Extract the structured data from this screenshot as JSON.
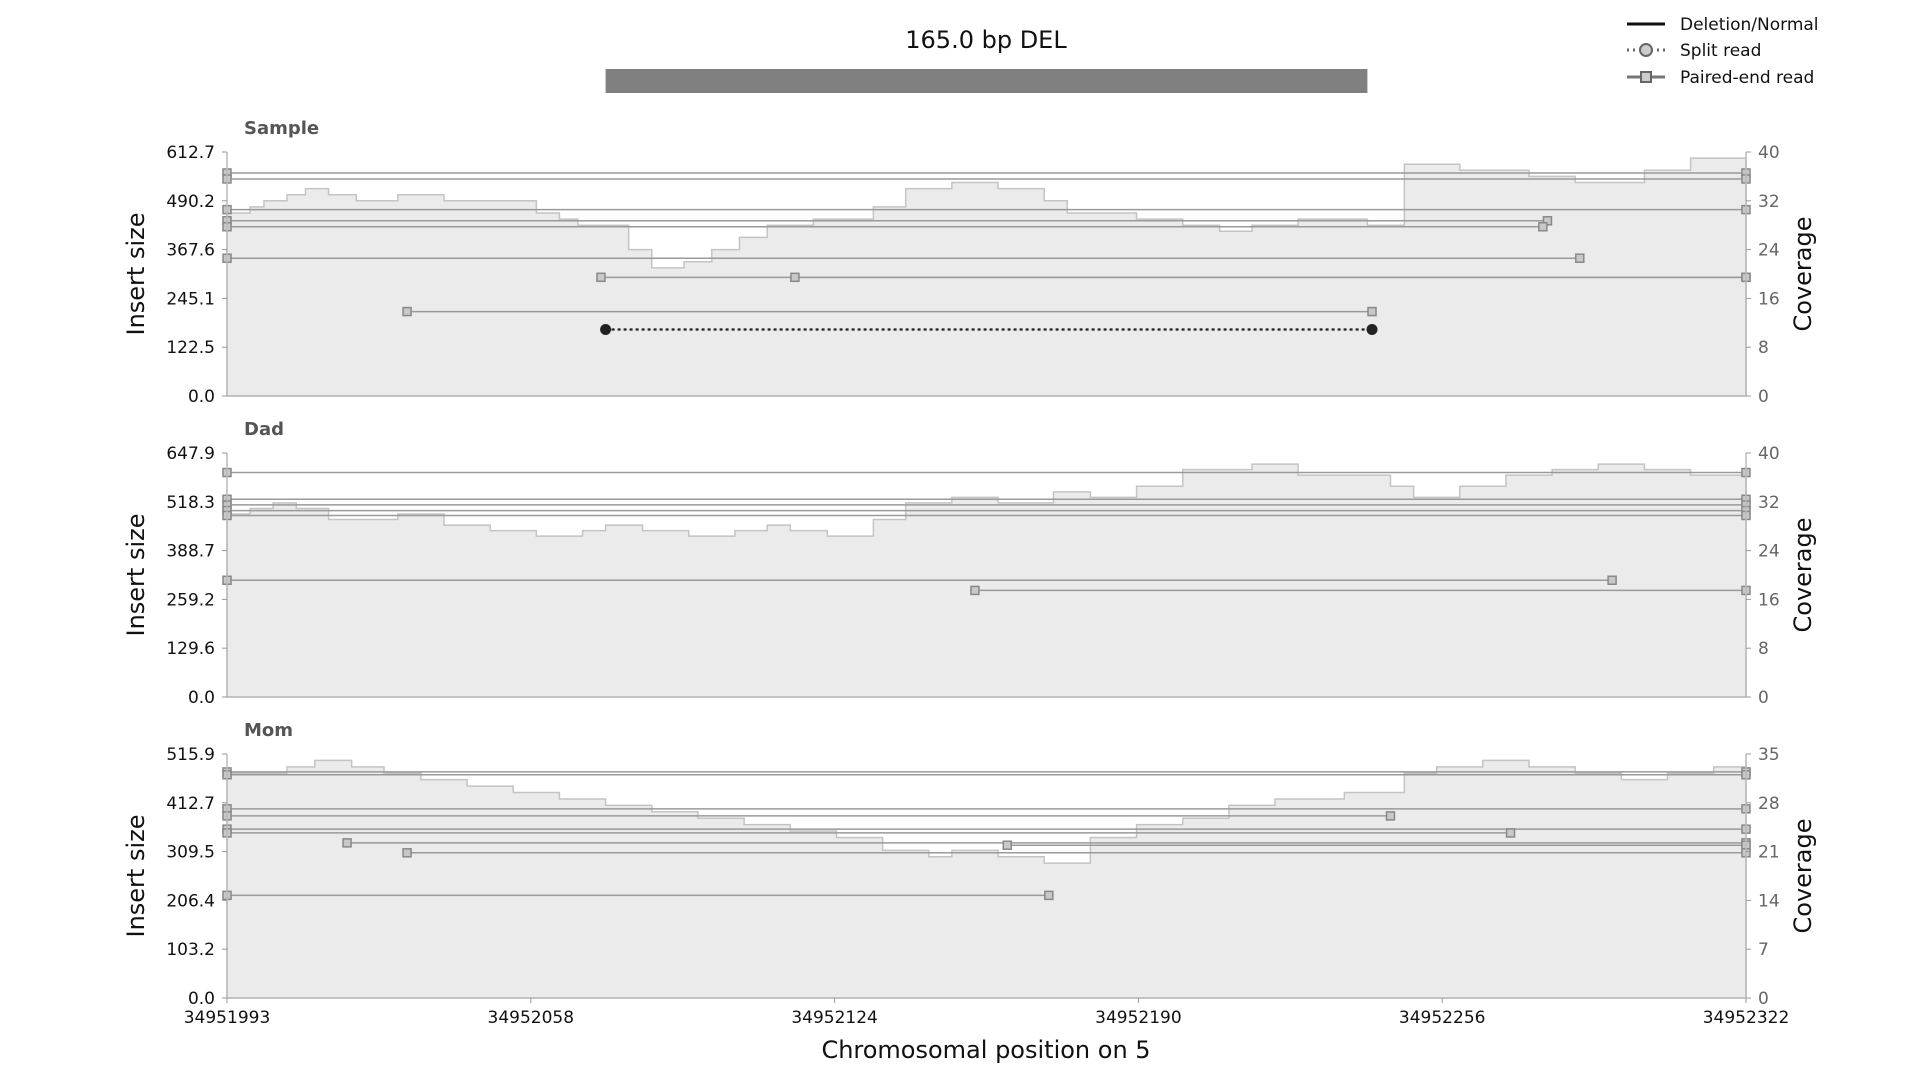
{
  "chart_data": {
    "type": "line",
    "title": "165.0 bp DEL",
    "xlabel": "Chromosomal position on 5",
    "x_ticks": [
      "34951993",
      "34952058",
      "34952124",
      "34952190",
      "34952256",
      "34952322"
    ],
    "xlim": [
      34951993,
      34952322
    ],
    "legend_position": "top-right",
    "legend": [
      {
        "label": "Deletion/Normal",
        "style": "solid"
      },
      {
        "label": "Split read",
        "style": "dotted-circle"
      },
      {
        "label": "Paired-end read",
        "style": "line-square"
      }
    ],
    "sv": {
      "start": 34952075,
      "end": 34952240,
      "type": "DEL",
      "length_bp": 165.0
    },
    "colors": {
      "coverage_fill": "#ebebeb",
      "coverage_edge": "#c4c4c4",
      "read_line": "#9a9a9a",
      "sv_bar": "#808080",
      "split_read": "#222222"
    },
    "panels": [
      {
        "name": "Sample",
        "ylabel": "Insert size",
        "y2label": "Coverage",
        "y_ticks": [
          "0.0",
          "122.5",
          "245.1",
          "367.6",
          "490.2",
          "612.7"
        ],
        "y2_ticks": [
          "0",
          "8",
          "16",
          "24",
          "32",
          "40"
        ],
        "ylim": [
          0,
          612.7
        ],
        "y2lim": [
          0,
          40
        ],
        "coverage": {
          "x": [
            34951993,
            34951998,
            34952001,
            34952006,
            34952010,
            34952015,
            34952021,
            34952030,
            34952040,
            34952050,
            34952060,
            34952065,
            34952069,
            34952075,
            34952080,
            34952085,
            34952092,
            34952098,
            34952104,
            34952110,
            34952120,
            34952133,
            34952140,
            34952150,
            34952160,
            34952170,
            34952175,
            34952180,
            34952190,
            34952200,
            34952208,
            34952215,
            34952225,
            34952240,
            34952248,
            34952260,
            34952275,
            34952285,
            34952300,
            34952310,
            34952322
          ],
          "y": [
            30,
            31,
            32,
            33,
            34,
            33,
            32,
            33,
            32,
            32,
            30,
            29,
            28,
            28,
            24,
            21,
            22,
            24,
            26,
            28,
            29,
            31,
            34,
            35,
            34,
            32,
            30,
            30,
            29,
            28,
            27,
            28,
            29,
            28,
            38,
            37,
            36,
            35,
            37,
            39,
            38
          ]
        },
        "split_reads": [
          {
            "start": 34952075,
            "end": 34952241,
            "insert_size": 167
          }
        ],
        "paired_reads": [
          {
            "start": 34951993,
            "end": 34952322,
            "insert_size": 560
          },
          {
            "start": 34951993,
            "end": 34952322,
            "insert_size": 545
          },
          {
            "start": 34951993,
            "end": 34952322,
            "insert_size": 468
          },
          {
            "start": 34951993,
            "end": 34952279,
            "insert_size": 440
          },
          {
            "start": 34951993,
            "end": 34952278,
            "insert_size": 425
          },
          {
            "start": 34951993,
            "end": 34952286,
            "insert_size": 346
          },
          {
            "start": 34952074,
            "end": 34952322,
            "insert_size": 298
          },
          {
            "start": 34952116,
            "end": 34952322,
            "insert_size": 298
          },
          {
            "start": 34952032,
            "end": 34952241,
            "insert_size": 212
          }
        ]
      },
      {
        "name": "Dad",
        "ylabel": "Insert size",
        "y2label": "Coverage",
        "y_ticks": [
          "0.0",
          "129.6",
          "259.2",
          "388.7",
          "518.3",
          "647.9"
        ],
        "y2_ticks": [
          "0",
          "8",
          "16",
          "24",
          "32",
          "40"
        ],
        "ylim": [
          0,
          647.9
        ],
        "y2lim": [
          0,
          44
        ],
        "coverage": {
          "x": [
            34951993,
            34951998,
            34952003,
            34952008,
            34952015,
            34952030,
            34952040,
            34952050,
            34952060,
            34952070,
            34952075,
            34952083,
            34952093,
            34952103,
            34952110,
            34952115,
            34952123,
            34952133,
            34952140,
            34952150,
            34952160,
            34952172,
            34952180,
            34952190,
            34952200,
            34952215,
            34952225,
            34952245,
            34952250,
            34952260,
            34952270,
            34952280,
            34952290,
            34952300,
            34952310,
            34952322
          ],
          "y": [
            33,
            34,
            35,
            34,
            32,
            33,
            31,
            30,
            29,
            30,
            31,
            30,
            29,
            30,
            31,
            30,
            29,
            32,
            35,
            36,
            35,
            37,
            36,
            38,
            41,
            42,
            40,
            38,
            36,
            38,
            40,
            41,
            42,
            41,
            40,
            40
          ]
        },
        "split_reads": [],
        "paired_reads": [
          {
            "start": 34951993,
            "end": 34952322,
            "insert_size": 596
          },
          {
            "start": 34951993,
            "end": 34952322,
            "insert_size": 525
          },
          {
            "start": 34951993,
            "end": 34952322,
            "insert_size": 510
          },
          {
            "start": 34951993,
            "end": 34952322,
            "insert_size": 495
          },
          {
            "start": 34951993,
            "end": 34952322,
            "insert_size": 482
          },
          {
            "start": 34951993,
            "end": 34952293,
            "insert_size": 310
          },
          {
            "start": 34952155,
            "end": 34952322,
            "insert_size": 283
          }
        ]
      },
      {
        "name": "Mom",
        "ylabel": "Insert size",
        "y2label": "Coverage",
        "y_ticks": [
          "0.0",
          "103.2",
          "206.4",
          "309.5",
          "412.7",
          "515.9"
        ],
        "y2_ticks": [
          "0",
          "7",
          "14",
          "21",
          "28",
          "35"
        ],
        "ylim": [
          0,
          515.9
        ],
        "y2lim": [
          0,
          38
        ],
        "coverage": {
          "x": [
            34951993,
            34951998,
            34952006,
            34952012,
            34952020,
            34952027,
            34952035,
            34952045,
            34952055,
            34952065,
            34952075,
            34952085,
            34952095,
            34952105,
            34952115,
            34952125,
            34952135,
            34952145,
            34952150,
            34952160,
            34952170,
            34952180,
            34952190,
            34952200,
            34952210,
            34952220,
            34952235,
            34952248,
            34952255,
            34952265,
            34952275,
            34952285,
            34952295,
            34952305,
            34952315,
            34952322
          ],
          "y": [
            35,
            35,
            36,
            37,
            36,
            35,
            34,
            33,
            32,
            31,
            30,
            29,
            28,
            27,
            26,
            25,
            23,
            22,
            23,
            22,
            21,
            25,
            27,
            28,
            30,
            31,
            32,
            35,
            36,
            37,
            36,
            35,
            34,
            35,
            36,
            37
          ]
        },
        "split_reads": [],
        "paired_reads": [
          {
            "start": 34951993,
            "end": 34952322,
            "insert_size": 478
          },
          {
            "start": 34951993,
            "end": 34952322,
            "insert_size": 472
          },
          {
            "start": 34951993,
            "end": 34952322,
            "insert_size": 400
          },
          {
            "start": 34951993,
            "end": 34952245,
            "insert_size": 385
          },
          {
            "start": 34951993,
            "end": 34952322,
            "insert_size": 357
          },
          {
            "start": 34951993,
            "end": 34952271,
            "insert_size": 349
          },
          {
            "start": 34952019,
            "end": 34952322,
            "insert_size": 328
          },
          {
            "start": 34952162,
            "end": 34952322,
            "insert_size": 323
          },
          {
            "start": 34952032,
            "end": 34952322,
            "insert_size": 307
          },
          {
            "start": 34951993,
            "end": 34952171,
            "insert_size": 217
          }
        ]
      }
    ]
  }
}
